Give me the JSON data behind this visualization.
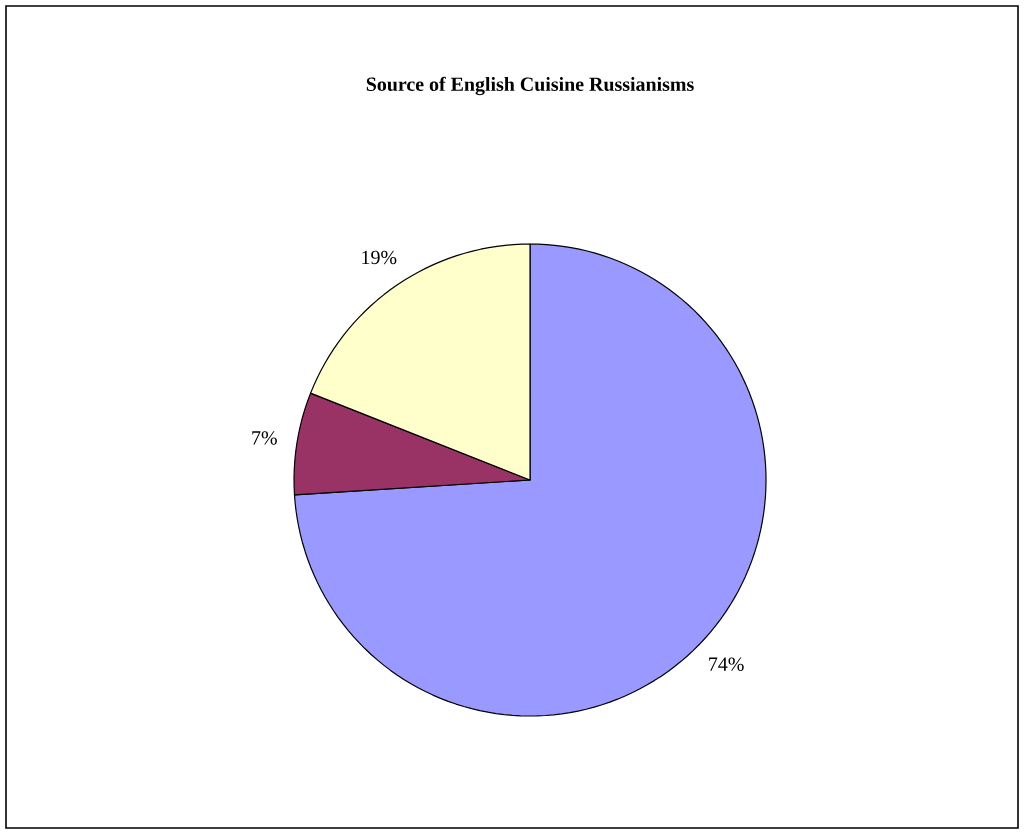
{
  "chart_data": {
    "type": "pie",
    "title": "Source of English Cuisine Russianisms",
    "categories": [
      null,
      null,
      null
    ],
    "values": [
      74,
      7,
      19
    ],
    "colors": [
      "#9999ff",
      "#993366",
      "#ffffcc"
    ],
    "value_labels": [
      "74%",
      "7%",
      "19%"
    ]
  }
}
